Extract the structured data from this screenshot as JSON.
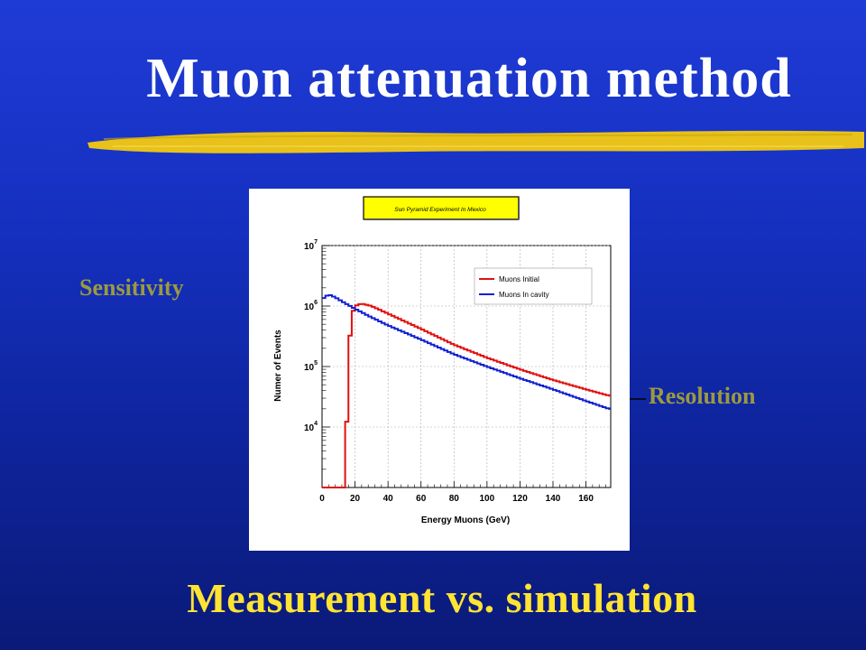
{
  "slide": {
    "title": "Muon attenuation method",
    "footer": "Measurement vs. simulation",
    "sensitivity_label": "Sensitivity",
    "resolution_label": "Resolution"
  },
  "colors": {
    "title": "#ffffff",
    "footer": "#ffe433",
    "annotation": "#9c9a3e",
    "brush": "#e8c21a",
    "series_initial": "#e01010",
    "series_cavity": "#1020d0"
  },
  "chart_data": {
    "type": "line",
    "title": "Sun Pyramid Experiment In Mexico",
    "xlabel": "Energy Muons (GeV)",
    "ylabel": "Numer of Events",
    "xlim": [
      0,
      175
    ],
    "ylim": [
      1000,
      10000000
    ],
    "yscale": "log",
    "grid": true,
    "legend_position": "top-right",
    "x_ticks": [
      "0",
      "20",
      "40",
      "60",
      "80",
      "100",
      "120",
      "140",
      "160"
    ],
    "y_ticks": [
      {
        "base": "10",
        "exp": "4",
        "value": 10000
      },
      {
        "base": "10",
        "exp": "5",
        "value": 100000
      },
      {
        "base": "10",
        "exp": "6",
        "value": 1000000
      },
      {
        "base": "10",
        "exp": "7",
        "value": 10000000
      }
    ],
    "series": [
      {
        "name": "Muons Initial",
        "x": [
          0,
          14,
          16,
          18,
          20,
          24,
          30,
          40,
          60,
          80,
          100,
          120,
          140,
          160,
          174
        ],
        "y": [
          1000,
          1000,
          150000,
          700000,
          1000000,
          1100000,
          1000000,
          750000,
          420000,
          230000,
          140000,
          90000,
          60000,
          42000,
          33000
        ]
      },
      {
        "name": "Muons In cavity",
        "x": [
          0,
          4,
          8,
          12,
          20,
          30,
          40,
          60,
          80,
          100,
          120,
          140,
          160,
          174
        ],
        "y": [
          1300000,
          1550000,
          1400000,
          1200000,
          900000,
          650000,
          480000,
          280000,
          160000,
          100000,
          64000,
          42000,
          27000,
          20000
        ]
      }
    ]
  }
}
